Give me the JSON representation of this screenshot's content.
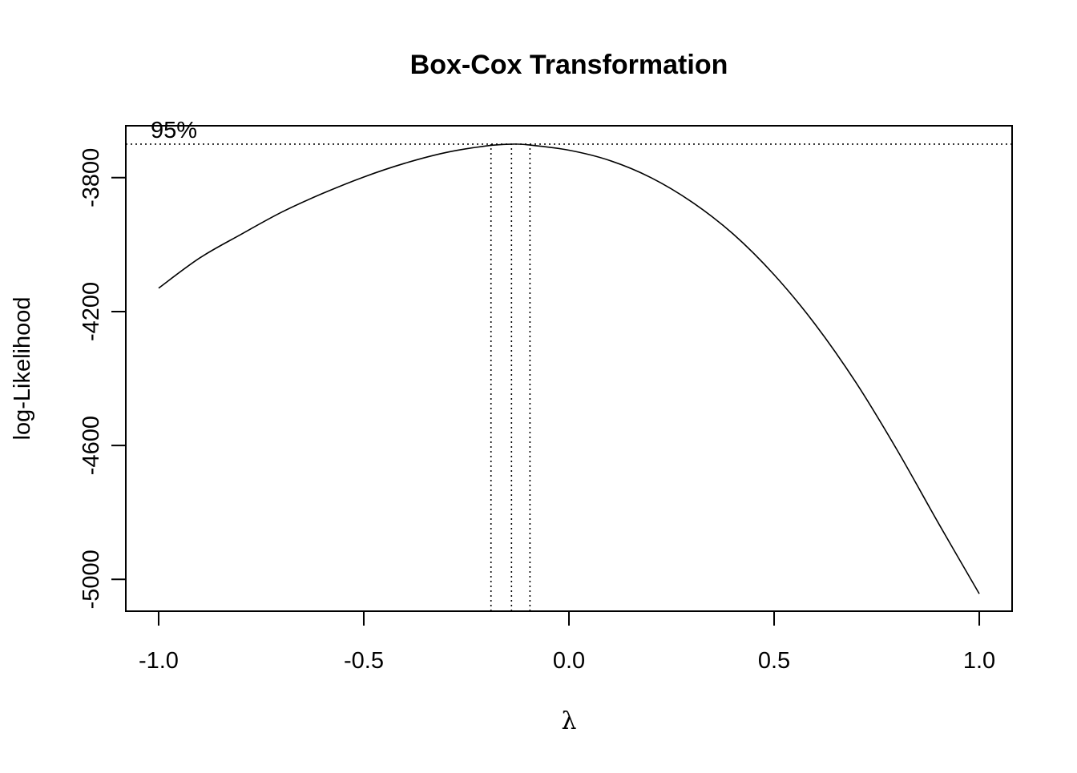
{
  "chart_data": {
    "type": "line",
    "title": "Box-Cox Transformation",
    "xlabel": "λ",
    "ylabel": "log-Likelihood",
    "xlim": [
      -1.08,
      1.08
    ],
    "ylim": [
      -5095,
      -3645
    ],
    "x_ticks": [
      -1.0,
      -0.5,
      0.0,
      0.5,
      1.0
    ],
    "x_tick_labels": [
      "-1.0",
      "-0.5",
      "0.0",
      "0.5",
      "1.0"
    ],
    "y_ticks": [
      -5000,
      -4600,
      -4200,
      -3800
    ],
    "y_tick_labels": [
      "-5000",
      "-4600",
      "-4200",
      "-3800"
    ],
    "grid": false,
    "series": [
      {
        "name": "",
        "x": [
          -1.0,
          -0.9,
          -0.8,
          -0.7,
          -0.6,
          -0.5,
          -0.4,
          -0.3,
          -0.2,
          -0.14,
          -0.1,
          0.0,
          0.1,
          0.2,
          0.3,
          0.4,
          0.5,
          0.6,
          0.7,
          0.8,
          0.9,
          1.0
        ],
        "y": [
          -4130,
          -4040,
          -3970,
          -3903,
          -3847,
          -3798,
          -3757,
          -3725,
          -3705,
          -3700,
          -3702,
          -3718,
          -3749,
          -3800,
          -3873,
          -3968,
          -4090,
          -4238,
          -4413,
          -4614,
          -4831,
          -5043
        ]
      }
    ],
    "annotations": {
      "ci_level_label": "95%",
      "ci_threshold_loglik": -3700,
      "lambda_hat": -0.14,
      "ci_lower": -0.19,
      "ci_upper": -0.095
    }
  }
}
